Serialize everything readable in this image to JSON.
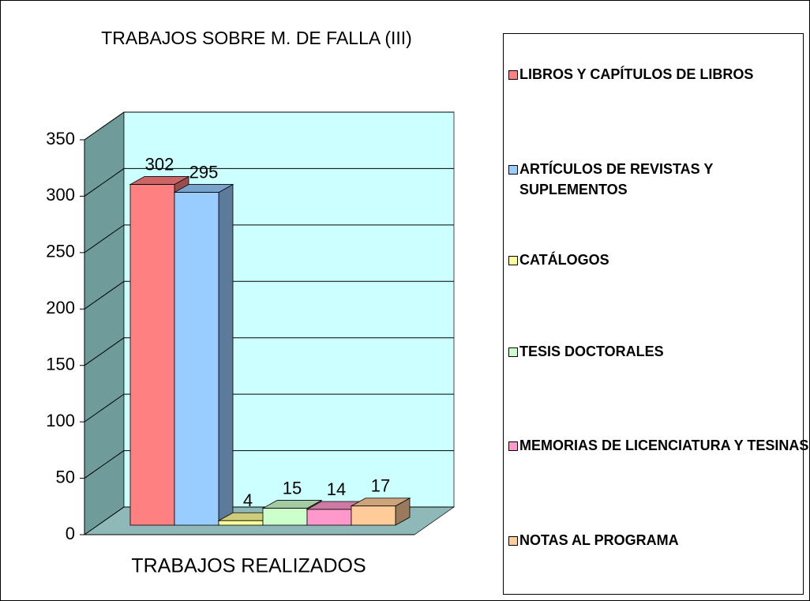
{
  "chart_data": {
    "type": "bar3d",
    "title": "TRABAJOS SOBRE M. DE FALLA (III)",
    "categories": [
      "TRABAJOS REALIZADOS"
    ],
    "series": [
      {
        "name": "LIBROS Y CAPÍTULOS DE LIBROS",
        "color": "#ff8080",
        "values": [
          302
        ]
      },
      {
        "name": "ARTÍCULOS DE REVISTAS Y SUPLEMENTOS",
        "color": "#99ccff",
        "values": [
          295
        ]
      },
      {
        "name": "CATÁLOGOS",
        "color": "#ffff99",
        "values": [
          4
        ]
      },
      {
        "name": "TESIS DOCTORALES",
        "color": "#ccffcc",
        "values": [
          15
        ]
      },
      {
        "name": "MEMORIAS DE LICENCIATURA Y TESINAS",
        "color": "#ff99cc",
        "values": [
          14
        ]
      },
      {
        "name": "NOTAS AL PROGRAMA",
        "color": "#ffcc99",
        "values": [
          17
        ]
      }
    ],
    "ylim": [
      0,
      350
    ],
    "yticks": [
      0,
      50,
      100,
      150,
      200,
      250,
      300,
      350
    ],
    "grid": true,
    "legend": "right"
  }
}
